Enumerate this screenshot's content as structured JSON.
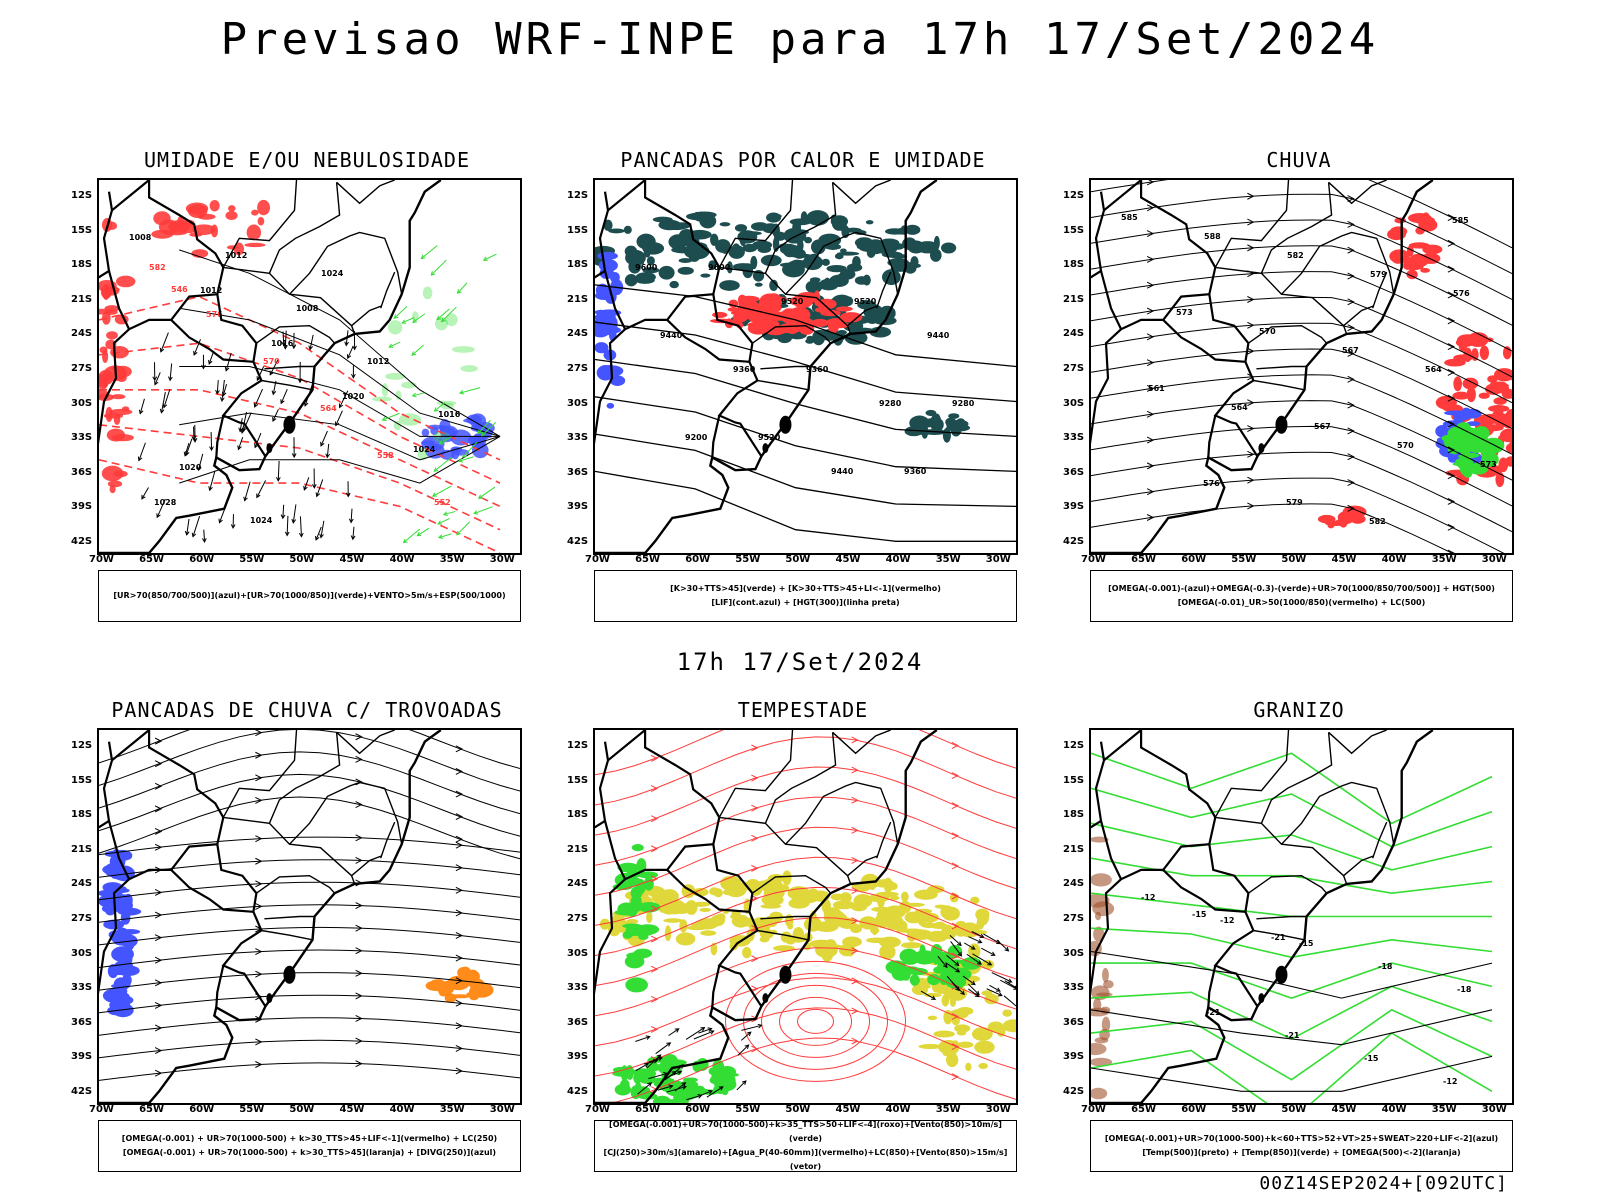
{
  "header": {
    "title": "Previsao WRF-INPE  para 17h 17/Set/2024"
  },
  "middle": {
    "title": "17h 17/Set/2024"
  },
  "footer": {
    "stamp": "00Z14SEP2024+[092UTC]"
  },
  "axes": {
    "lat_labels": [
      "12S",
      "15S",
      "18S",
      "21S",
      "24S",
      "27S",
      "30S",
      "33S",
      "36S",
      "39S",
      "42S"
    ],
    "lon_labels": [
      "70W",
      "65W",
      "60W",
      "55W",
      "50W",
      "45W",
      "40W",
      "35W",
      "30W"
    ],
    "lat_range": [
      -42,
      -10
    ],
    "lon_range": [
      -70,
      -28
    ]
  },
  "colors": {
    "red": "#ff3b3b",
    "green": "#33dd33",
    "blue": "#4455ff",
    "darkteal": "#1d4d4f",
    "yellow": "#e0d83a",
    "orange": "#ff8c1a"
  },
  "panels": [
    {
      "title": "UMIDADE E/OU NEBULOSIDADE",
      "legend": [
        "[UR>70(850/700/500)](azul)+[UR>70(1000/850)](verde)+VENTO>5m/s+ESP(500/1000)"
      ],
      "contour_labels": [
        "1008",
        "1012",
        "1016",
        "1020",
        "1024",
        "1028",
        "1012",
        "1008",
        "1012",
        "1016",
        "1020",
        "1024",
        "1024"
      ],
      "thickness_labels": [
        "582",
        "576",
        "570",
        "564",
        "558",
        "552",
        "546"
      ]
    },
    {
      "title": "PANCADAS POR CALOR E UMIDADE",
      "legend": [
        "[K>30+TTS>45](verde) + [K>30+TTS>45+LI<-1](vermelho)",
        "[LIF](cont.azul) + [HGT(300)](linha preta)"
      ],
      "contour_labels": [
        "9600",
        "9600",
        "9520",
        "9520",
        "9440",
        "9440",
        "9360",
        "9360",
        "9280",
        "9280",
        "9200",
        "9520",
        "9440",
        "9360"
      ]
    },
    {
      "title": "CHUVA",
      "legend": [
        "[OMEGA(-0.001)-(azul)+OMEGA(-0.3)-(verde)+UR>70(1000/850/700/500)] + HGT(500)",
        "[OMEGA(-0.01)_UR>50(1000/850)(vermelho) + LC(500)"
      ],
      "contour_labels": [
        "585",
        "588",
        "582",
        "579",
        "576",
        "573",
        "570",
        "567",
        "564",
        "561",
        "564",
        "567",
        "570",
        "573",
        "576",
        "579",
        "582",
        "585"
      ]
    },
    {
      "title": "PANCADAS DE CHUVA C/ TROVOADAS",
      "legend": [
        "[OMEGA(-0.001) + UR>70(1000-500) + k>30_TTS>45+LIF<-1](vermelho) + LC(250)",
        "[OMEGA(-0.001) + UR>70(1000-500) + k>30_TTS>45](laranja) + [DIVG(250)](azul)"
      ]
    },
    {
      "title": "TEMPESTADE",
      "legend": [
        "[OMEGA(-0.001)+UR>70(1000-500)+k>35_TTS>50+LIF<-4](roxo)+[Vento(850)>10m/s](verde)",
        "[CJ(250)>30m/s](amarelo)+[Agua_P(40-60mm)](vermelho)+LC(850)+[Vento(850)>15m/s](vetor)"
      ]
    },
    {
      "title": "GRANIZO",
      "legend": [
        "[OMEGA(-0.001)+UR>70(1000-500)+k<60+TTS>52+VT>25+SWEAT>220+LIF<-2](azul)",
        "[Temp(500)](preto) + [Temp(850)](verde) + [OMEGA(500)<-2](laranja)"
      ],
      "contour_labels": [
        "-12",
        "-12",
        "-15",
        "-18",
        "-18",
        "-21",
        "-21",
        "-15",
        "-12",
        "-15",
        "-21"
      ]
    }
  ]
}
